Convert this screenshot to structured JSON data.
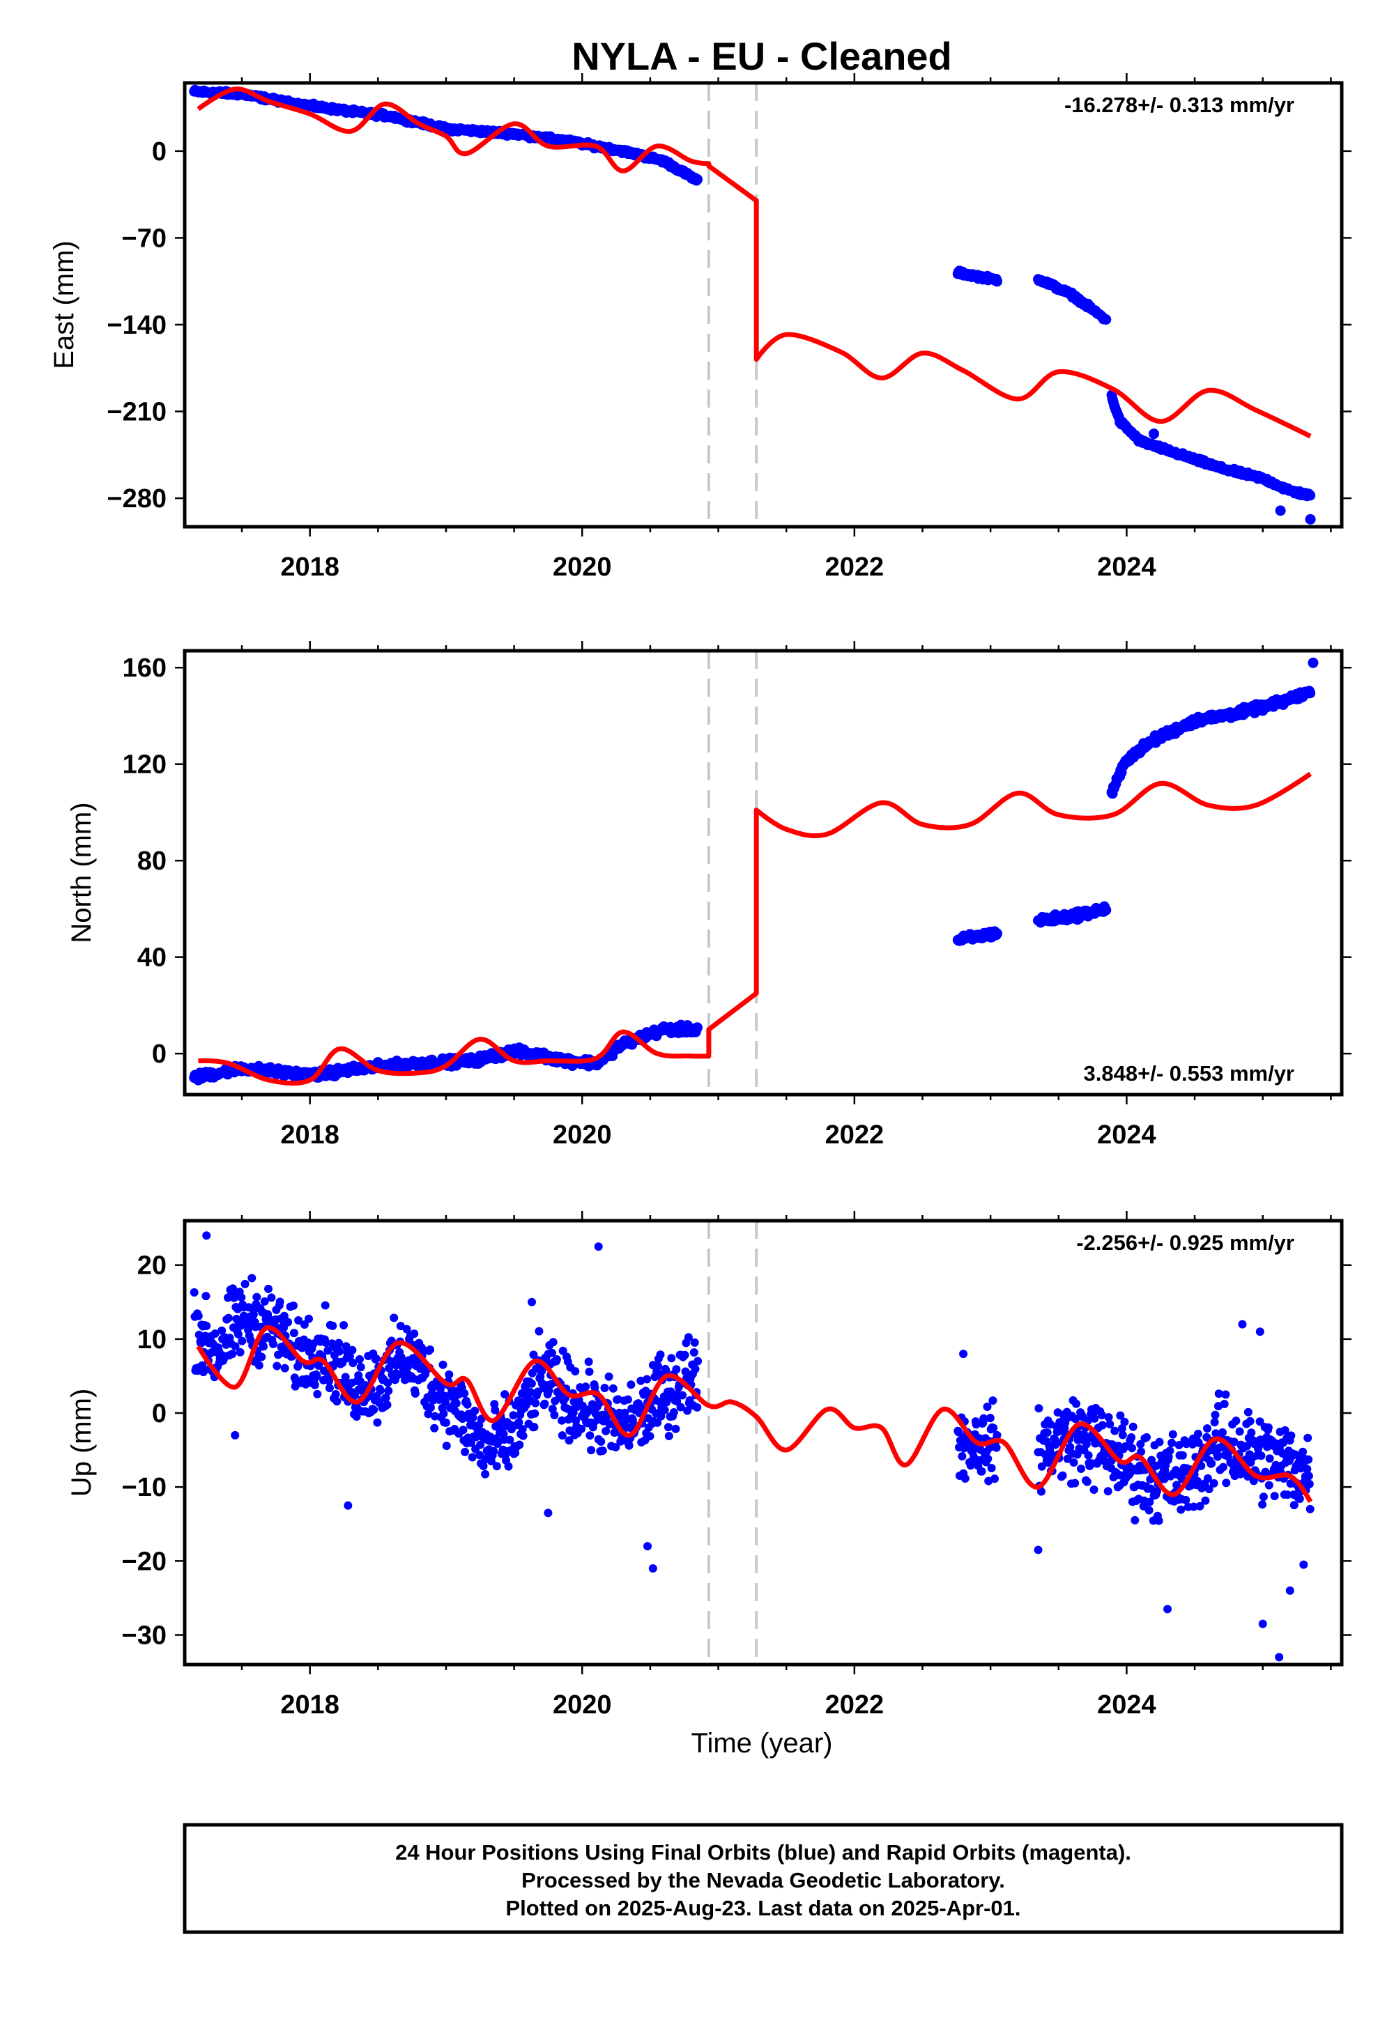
{
  "figure": {
    "title": "NYLA  - EU - Cleaned",
    "xlabel": "Time (year)",
    "footer": [
      "24 Hour Positions Using Final Orbits (blue) and Rapid Orbits (magenta).",
      "Processed by the Nevada Geodetic Laboratory.",
      "Plotted on 2025-Aug-23. Last data on 2025-Apr-01."
    ],
    "colors": {
      "data": "#0000ff",
      "model": "#ff0000",
      "event_line": "#c8c8c8",
      "frame": "#000000"
    }
  },
  "chart_data": [
    {
      "type": "scatter",
      "panel": "east",
      "ylabel": "East (mm)",
      "rate_text": "-16.278+/- 0.313 mm/yr",
      "rate_position": "top-right",
      "xlim": [
        2017.08,
        2025.58
      ],
      "ylim": [
        -303,
        55
      ],
      "xticks": [
        2018,
        2020,
        2022,
        2024
      ],
      "xtick_labels": [
        "2018",
        "2020",
        "2022",
        "2024"
      ],
      "yticks": [
        0,
        -70,
        -140,
        -210,
        -280
      ],
      "ytick_labels": [
        "0",
        "−70",
        "−140",
        "−210",
        "−280"
      ],
      "event_lines": [
        2020.93,
        2021.28
      ],
      "data_segments": [
        {
          "x": [
            2017.15,
            2017.5,
            2017.9,
            2018.3,
            2018.6,
            2019.0,
            2019.5,
            2019.9,
            2020.3,
            2020.6,
            2020.85
          ],
          "y": [
            48,
            46,
            38,
            32,
            28,
            18,
            14,
            8,
            0,
            -8,
            -24
          ]
        },
        {
          "x": [
            2022.76,
            2023.05
          ],
          "y": [
            -98,
            -104
          ]
        },
        {
          "x": [
            2023.35,
            2023.6,
            2023.85
          ],
          "y": [
            -103,
            -116,
            -136
          ]
        },
        {
          "x": [
            2023.89,
            2023.95,
            2024.1,
            2024.4,
            2024.7,
            2025.0,
            2025.2,
            2025.35
          ],
          "y": [
            -198,
            -218,
            -234,
            -245,
            -256,
            -264,
            -274,
            -278
          ]
        }
      ],
      "outliers": [
        {
          "x": 2024.2,
          "y": -228
        },
        {
          "x": 2025.13,
          "y": -290
        },
        {
          "x": 2025.35,
          "y": -297
        }
      ],
      "model": {
        "x": [
          2017.18,
          2017.45,
          2017.7,
          2018.0,
          2018.3,
          2018.55,
          2018.8,
          2019.0,
          2019.15,
          2019.5,
          2019.75,
          2020.1,
          2020.3,
          2020.55,
          2020.8,
          2020.93,
          2020.93,
          2021.28,
          2021.28,
          2021.5,
          2021.9,
          2022.2,
          2022.5,
          2022.8,
          2023.2,
          2023.5,
          2023.9,
          2024.25,
          2024.6,
          2024.95,
          2025.35
        ],
        "y": [
          34,
          50,
          40,
          30,
          16,
          38,
          22,
          12,
          -2,
          22,
          4,
          4,
          -16,
          4,
          -8,
          -10,
          -12,
          -40,
          -168,
          -148,
          -162,
          -183,
          -163,
          -177,
          -200,
          -178,
          -192,
          -218,
          -193,
          -209,
          -230
        ]
      }
    },
    {
      "type": "scatter",
      "panel": "north",
      "ylabel": "North (mm)",
      "rate_text": "3.848+/- 0.553 mm/yr",
      "rate_position": "bottom-right",
      "xlim": [
        2017.08,
        2025.58
      ],
      "ylim": [
        -17,
        167
      ],
      "xticks": [
        2018,
        2020,
        2022,
        2024
      ],
      "xtick_labels": [
        "2018",
        "2020",
        "2022",
        "2024"
      ],
      "yticks": [
        160,
        120,
        80,
        40,
        0
      ],
      "ytick_labels": [
        "160",
        "120",
        "80",
        "40",
        "0"
      ],
      "event_lines": [
        2020.93,
        2021.28
      ],
      "data_segments": [
        {
          "x": [
            2017.15,
            2017.5,
            2018.0,
            2018.4,
            2018.8,
            2019.2,
            2019.5,
            2019.9,
            2020.1,
            2020.3,
            2020.6,
            2020.85
          ],
          "y": [
            -10,
            -6,
            -9,
            -6,
            -4,
            -3,
            1,
            -3,
            -4,
            4,
            10,
            10
          ]
        },
        {
          "x": [
            2022.76,
            2023.05
          ],
          "y": [
            47,
            50
          ]
        },
        {
          "x": [
            2023.35,
            2023.6,
            2023.85
          ],
          "y": [
            55,
            57,
            60
          ]
        },
        {
          "x": [
            2023.89,
            2024.0,
            2024.2,
            2024.5,
            2024.8,
            2025.1,
            2025.35
          ],
          "y": [
            108,
            122,
            130,
            138,
            141,
            145,
            150
          ]
        }
      ],
      "outliers": [
        {
          "x": 2025.37,
          "y": 162
        }
      ],
      "model": {
        "x": [
          2017.18,
          2017.4,
          2017.7,
          2018.0,
          2018.22,
          2018.5,
          2018.8,
          2019.0,
          2019.25,
          2019.5,
          2019.75,
          2020.1,
          2020.3,
          2020.55,
          2020.8,
          2020.93,
          2020.93,
          2021.28,
          2021.28,
          2021.5,
          2021.8,
          2022.2,
          2022.5,
          2022.85,
          2023.2,
          2023.5,
          2023.9,
          2024.25,
          2024.6,
          2024.95,
          2025.35
        ],
        "y": [
          -3,
          -4,
          -11,
          -11,
          2,
          -7,
          -8,
          -5,
          6,
          -3,
          -3,
          -2,
          9,
          0,
          -1,
          -1,
          10,
          25,
          101,
          93,
          91,
          104,
          95,
          95,
          108,
          99,
          99,
          112,
          103,
          103,
          116
        ]
      }
    },
    {
      "type": "scatter",
      "panel": "up",
      "ylabel": "Up (mm)",
      "rate_text": "-2.256+/- 0.925 mm/yr",
      "rate_position": "top-right",
      "xlim": [
        2017.08,
        2025.58
      ],
      "ylim": [
        -34,
        26
      ],
      "xticks": [
        2018,
        2020,
        2022,
        2024
      ],
      "xtick_labels": [
        "2018",
        "2020",
        "2022",
        "2024"
      ],
      "yticks": [
        20,
        10,
        0,
        -10,
        -20,
        -30
      ],
      "ytick_labels": [
        "20",
        "10",
        "0",
        "−10",
        "−20",
        "−30"
      ],
      "event_lines": [
        2020.93,
        2021.28
      ],
      "data_segments": [
        {
          "x": [
            2017.15,
            2017.3,
            2017.5,
            2017.7,
            2017.9,
            2018.1,
            2018.3,
            2018.5,
            2018.7,
            2018.9,
            2019.1,
            2019.3,
            2019.5,
            2019.7,
            2019.9,
            2020.1,
            2020.3,
            2020.5,
            2020.7,
            2020.85
          ],
          "y": [
            12,
            8,
            13,
            12,
            8,
            9,
            4,
            4,
            8,
            4,
            0,
            -5,
            -3,
            5,
            2,
            0,
            -2,
            1,
            4,
            6
          ],
          "spread": 4.5
        },
        {
          "x": [
            2022.76,
            2023.05
          ],
          "y": [
            -4,
            -4
          ],
          "spread": 4
        },
        {
          "x": [
            2023.35,
            2023.6,
            2023.85,
            2024.1,
            2024.4,
            2024.7,
            2025.0,
            2025.35
          ],
          "y": [
            -5,
            -3,
            -5,
            -8,
            -9,
            -4,
            -6,
            -8
          ],
          "spread": 5
        }
      ],
      "outliers": [
        {
          "x": 2017.24,
          "y": 24
        },
        {
          "x": 2017.45,
          "y": -3
        },
        {
          "x": 2018.28,
          "y": -12.5
        },
        {
          "x": 2019.63,
          "y": 15
        },
        {
          "x": 2019.75,
          "y": -13.5
        },
        {
          "x": 2020.12,
          "y": 22.5
        },
        {
          "x": 2020.52,
          "y": -21
        },
        {
          "x": 2020.48,
          "y": -18
        },
        {
          "x": 2022.8,
          "y": 8
        },
        {
          "x": 2023.35,
          "y": -18.5
        },
        {
          "x": 2024.3,
          "y": -26.5
        },
        {
          "x": 2024.85,
          "y": 12
        },
        {
          "x": 2024.98,
          "y": 11
        },
        {
          "x": 2025.0,
          "y": -28.5
        },
        {
          "x": 2025.12,
          "y": -33
        },
        {
          "x": 2025.2,
          "y": -24
        },
        {
          "x": 2025.3,
          "y": -20.5
        }
      ],
      "model": {
        "x": [
          2017.18,
          2017.45,
          2017.68,
          2017.95,
          2018.1,
          2018.35,
          2018.65,
          2019.0,
          2019.15,
          2019.35,
          2019.65,
          2019.9,
          2020.12,
          2020.35,
          2020.62,
          2020.93,
          2021.1,
          2021.28,
          2021.5,
          2021.8,
          2022.0,
          2022.2,
          2022.38,
          2022.65,
          2022.9,
          2023.1,
          2023.35,
          2023.65,
          2023.95,
          2024.1,
          2024.35,
          2024.65,
          2024.95,
          2025.2,
          2025.35
        ],
        "y": [
          9,
          3.5,
          11.5,
          7,
          7,
          1.5,
          9.5,
          4,
          4.5,
          -1,
          7,
          2.5,
          2.5,
          -3,
          5,
          1,
          1.5,
          -0.5,
          -5,
          0.5,
          -2,
          -2,
          -7,
          0.5,
          -4,
          -4,
          -10,
          -1.5,
          -6.5,
          -6,
          -11,
          -3.5,
          -8.5,
          -8.5,
          -12
        ]
      }
    }
  ]
}
